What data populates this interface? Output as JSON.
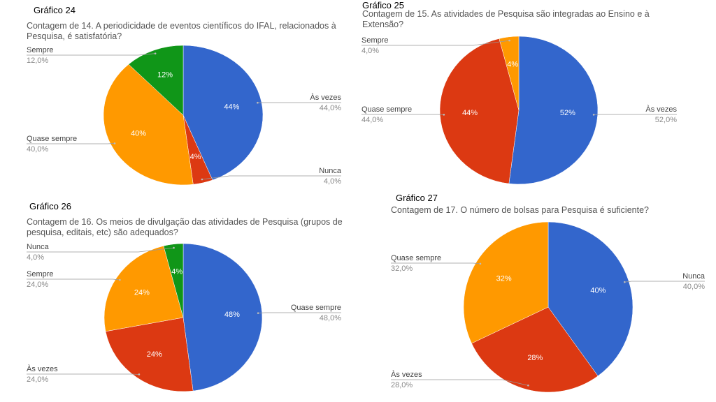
{
  "chart_data": [
    {
      "type": "pie",
      "label": "Gráfico 24",
      "title": "Contagem de 14. A periodicidade de eventos científicos do IFAL, relacionados à Pesquisa, é satisfatória?",
      "categories": [
        "Às vezes",
        "Nunca",
        "Quase sempre",
        "Sempre"
      ],
      "values": [
        44,
        4,
        40,
        12
      ],
      "value_labels": [
        "44%",
        "4%",
        "40%",
        "12%"
      ],
      "outer_value_labels": [
        "44,0%",
        "4,0%",
        "40,0%",
        "12,0%"
      ],
      "colors": [
        "#3366cc",
        "#dc3912",
        "#ff9900",
        "#109618"
      ]
    },
    {
      "type": "pie",
      "label": "Gráfico 25",
      "title": "Contagem de 15. As atividades de Pesquisa são integradas ao Ensino e à Extensão?",
      "categories": [
        "Às vezes",
        "Quase sempre",
        "Sempre"
      ],
      "values": [
        52,
        44,
        4
      ],
      "value_labels": [
        "52%",
        "44%",
        "4%"
      ],
      "outer_value_labels": [
        "52,0%",
        "44,0%",
        "4,0%"
      ],
      "colors": [
        "#3366cc",
        "#dc3912",
        "#ff9900"
      ]
    },
    {
      "type": "pie",
      "label": "Gráfico 26",
      "title": "Contagem de 16. Os meios de divulgação das atividades de Pesquisa (grupos de pesquisa, editais, etc) são adequados?",
      "categories": [
        "Quase sempre",
        "Às vezes",
        "Sempre",
        "Nunca"
      ],
      "values": [
        48,
        24,
        24,
        4
      ],
      "value_labels": [
        "48%",
        "24%",
        "24%",
        "4%"
      ],
      "outer_value_labels": [
        "48,0%",
        "24,0%",
        "24,0%",
        "4,0%"
      ],
      "colors": [
        "#3366cc",
        "#dc3912",
        "#ff9900",
        "#109618"
      ]
    },
    {
      "type": "pie",
      "label": "Gráfico 27",
      "title": "Contagem de 17. O número de bolsas para Pesquisa é suficiente?",
      "categories": [
        "Nunca",
        "Às vezes",
        "Quase sempre"
      ],
      "values": [
        40,
        28,
        32
      ],
      "value_labels": [
        "40%",
        "28%",
        "32%"
      ],
      "outer_value_labels": [
        "40,0%",
        "28,0%",
        "32,0%"
      ],
      "colors": [
        "#3366cc",
        "#dc3912",
        "#ff9900"
      ]
    }
  ]
}
